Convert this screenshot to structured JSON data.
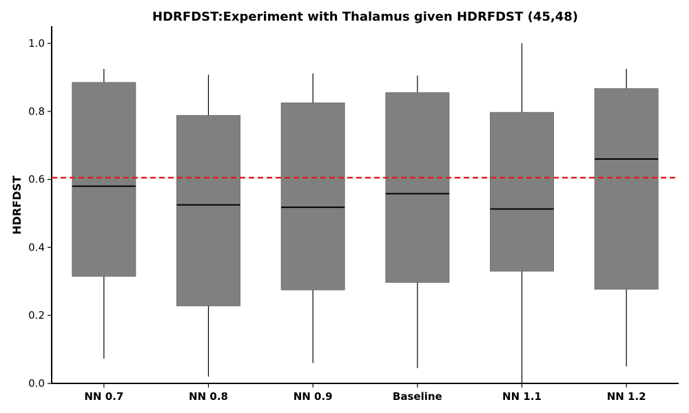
{
  "chart_data": {
    "type": "box",
    "title": "HDRFDST:Experiment with Thalamus given HDRFDST (45,48)",
    "xlabel": "",
    "ylabel": "HDRFDST",
    "ylim": [
      0.0,
      1.05
    ],
    "yticks": [
      "0.0",
      "0.2",
      "0.4",
      "0.6",
      "0.8",
      "1.0"
    ],
    "categories": [
      "NN 0.7",
      "NN 0.8",
      "NN 0.9",
      "Baseline",
      "NN 1.1",
      "NN 1.2"
    ],
    "boxes": [
      {
        "whisker_low": 0.073,
        "q1": 0.315,
        "median": 0.58,
        "q3": 0.885,
        "whisker_high": 0.925
      },
      {
        "whisker_low": 0.02,
        "q1": 0.228,
        "median": 0.525,
        "q3": 0.788,
        "whisker_high": 0.908
      },
      {
        "whisker_low": 0.06,
        "q1": 0.275,
        "median": 0.518,
        "q3": 0.825,
        "whisker_high": 0.912
      },
      {
        "whisker_low": 0.045,
        "q1": 0.297,
        "median": 0.558,
        "q3": 0.855,
        "whisker_high": 0.905
      },
      {
        "whisker_low": 0.0,
        "q1": 0.33,
        "median": 0.513,
        "q3": 0.797,
        "whisker_high": 1.0
      },
      {
        "whisker_low": 0.05,
        "q1": 0.277,
        "median": 0.66,
        "q3": 0.867,
        "whisker_high": 0.925
      }
    ],
    "reference_line": {
      "value": 0.605,
      "style": "dashed",
      "color": "#e31a1c"
    },
    "box_color": "#808080",
    "grid": false,
    "legend": "none"
  }
}
